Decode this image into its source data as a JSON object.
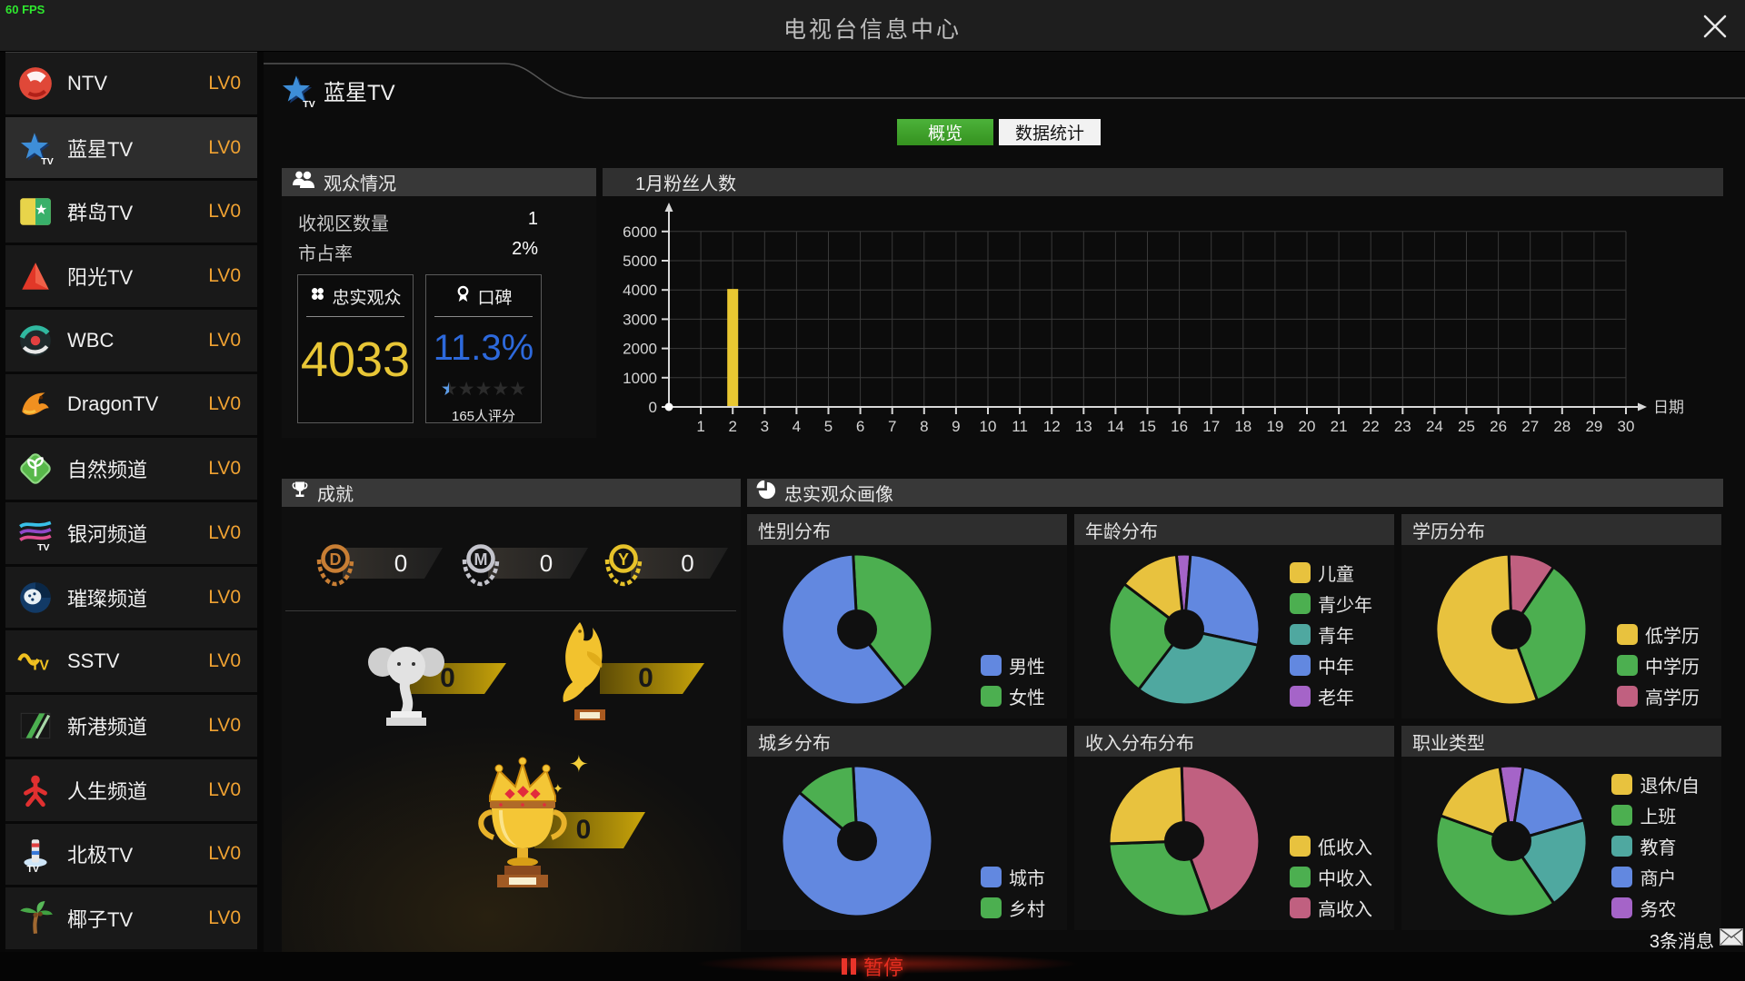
{
  "fps_label": "60 FPS",
  "window": {
    "title": "电视台信息中心"
  },
  "sidebar": {
    "selected_index": 1,
    "items": [
      {
        "name": "NTV",
        "level": "LV0",
        "icon": "ntv"
      },
      {
        "name": "蓝星TV",
        "level": "LV0",
        "icon": "bluestar"
      },
      {
        "name": "群岛TV",
        "level": "LV0",
        "icon": "islands"
      },
      {
        "name": "阳光TV",
        "level": "LV0",
        "icon": "sunshine"
      },
      {
        "name": "WBC",
        "level": "LV0",
        "icon": "wbc"
      },
      {
        "name": "DragonTV",
        "level": "LV0",
        "icon": "dragon"
      },
      {
        "name": "自然频道",
        "level": "LV0",
        "icon": "nature"
      },
      {
        "name": "银河频道",
        "level": "LV0",
        "icon": "galaxy"
      },
      {
        "name": "璀璨频道",
        "level": "LV0",
        "icon": "sparkleface"
      },
      {
        "name": "SSTV",
        "level": "LV0",
        "icon": "sstv"
      },
      {
        "name": "新港频道",
        "level": "LV0",
        "icon": "xingang"
      },
      {
        "name": "人生频道",
        "level": "LV0",
        "icon": "life"
      },
      {
        "name": "北极TV",
        "level": "LV0",
        "icon": "northpole"
      },
      {
        "name": "椰子TV",
        "level": "LV0",
        "icon": "coconut"
      }
    ]
  },
  "main": {
    "channel_name": "蓝星TV",
    "tabs": [
      {
        "label": "概览",
        "active": true
      },
      {
        "label": "数据统计",
        "active": false
      }
    ],
    "audience": {
      "title": "观众情况",
      "rows": [
        {
          "label": "收视区数量",
          "value": "1"
        },
        {
          "label": "市占率",
          "value": "2%"
        }
      ],
      "loyal": {
        "title": "忠实观众",
        "value": "4033"
      },
      "reputation": {
        "title": "口碑",
        "value": "11.3%",
        "stars_total": 5,
        "stars_filled": 0.5,
        "note": "165人评分"
      }
    },
    "achievements": {
      "title": "成就",
      "medals": [
        {
          "letter": "D",
          "count": "0",
          "tier": "bronze"
        },
        {
          "letter": "M",
          "count": "0",
          "tier": "silver"
        },
        {
          "letter": "Y",
          "count": "0",
          "tier": "gold"
        }
      ],
      "trophies": [
        {
          "type": "elephant",
          "count": "0"
        },
        {
          "type": "dolphin",
          "count": "0"
        },
        {
          "type": "crown",
          "count": "0"
        }
      ]
    },
    "portrait": {
      "title": "忠实观众画像"
    },
    "messages_label": "3条消息"
  },
  "footer": {
    "pause_label": "暂停"
  },
  "colors": {
    "tab_active_green": "#3da32c",
    "level_orange": "#f0a232",
    "loyal_yellow": "#e8c636",
    "reputation_blue": "#2d69dc",
    "pause_red": "#e8342a"
  },
  "chart_data": [
    {
      "type": "bar",
      "title": "1月粉丝人数",
      "xlabel": "日期",
      "ylabel": "",
      "ylim": [
        0,
        6000
      ],
      "ytick_step": 1000,
      "grid": true,
      "bar_color": "#e9c832",
      "categories": [
        1,
        2,
        3,
        4,
        5,
        6,
        7,
        8,
        9,
        10,
        11,
        12,
        13,
        14,
        15,
        16,
        17,
        18,
        19,
        20,
        21,
        22,
        23,
        24,
        25,
        26,
        27,
        28,
        29,
        30
      ],
      "values": [
        0,
        4033,
        0,
        0,
        0,
        0,
        0,
        0,
        0,
        0,
        0,
        0,
        0,
        0,
        0,
        0,
        0,
        0,
        0,
        0,
        0,
        0,
        0,
        0,
        0,
        0,
        0,
        0,
        0,
        0
      ]
    },
    {
      "type": "pie",
      "title": "性别分布",
      "start_angle": -3,
      "draw_order": [
        1,
        0
      ],
      "donut_hole": 0.27,
      "legend_position": "bottom-right",
      "slices": [
        {
          "label": "男性",
          "value": 60,
          "color": "#6288e0"
        },
        {
          "label": "女性",
          "value": 40,
          "color": "#4caf50"
        }
      ]
    },
    {
      "type": "pie",
      "title": "年龄分布",
      "start_angle": -6,
      "draw_order": [
        4,
        3,
        2,
        1,
        0
      ],
      "donut_hole": 0.27,
      "legend_position": "right",
      "slices": [
        {
          "label": "儿童",
          "value": 13,
          "color": "#e8c23e"
        },
        {
          "label": "青少年",
          "value": 25,
          "color": "#4caf50"
        },
        {
          "label": "青年",
          "value": 32,
          "color": "#4fa8a0"
        },
        {
          "label": "中年",
          "value": 27,
          "color": "#6288e0"
        },
        {
          "label": "老年",
          "value": 3,
          "color": "#a564c8"
        }
      ]
    },
    {
      "type": "pie",
      "title": "学历分布",
      "start_angle": -2,
      "draw_order": [
        2,
        1,
        0
      ],
      "donut_hole": 0.27,
      "legend_position": "bottom-right",
      "slices": [
        {
          "label": "低学历",
          "value": 55,
          "color": "#e8c23e"
        },
        {
          "label": "中学历",
          "value": 35,
          "color": "#4caf50"
        },
        {
          "label": "高学历",
          "value": 10,
          "color": "#c06080"
        }
      ]
    },
    {
      "type": "pie",
      "title": "城乡分布",
      "start_angle": -3,
      "draw_order": [
        0,
        1
      ],
      "donut_hole": 0.27,
      "legend_position": "bottom-right",
      "slices": [
        {
          "label": "城市",
          "value": 87,
          "color": "#6288e0"
        },
        {
          "label": "乡村",
          "value": 13,
          "color": "#4caf50"
        }
      ]
    },
    {
      "type": "pie",
      "title": "收入分布分布",
      "start_angle": -2,
      "draw_order": [
        2,
        1,
        0
      ],
      "donut_hole": 0.27,
      "legend_position": "bottom-right",
      "slices": [
        {
          "label": "低收入",
          "value": 25,
          "color": "#e8c23e"
        },
        {
          "label": "中收入",
          "value": 30,
          "color": "#4caf50"
        },
        {
          "label": "高收入",
          "value": 45,
          "color": "#c06080"
        }
      ]
    },
    {
      "type": "pie",
      "title": "职业类型",
      "start_angle": -9,
      "draw_order": [
        4,
        3,
        2,
        1,
        0
      ],
      "donut_hole": 0.27,
      "legend_position": "right",
      "slices": [
        {
          "label": "退休/自",
          "value": 17,
          "color": "#e8c23e"
        },
        {
          "label": "上班",
          "value": 40,
          "color": "#4caf50"
        },
        {
          "label": "教育",
          "value": 20,
          "color": "#4fa8a0"
        },
        {
          "label": "商户",
          "value": 18,
          "color": "#6288e0"
        },
        {
          "label": "务农",
          "value": 5,
          "color": "#a564c8"
        }
      ]
    }
  ]
}
